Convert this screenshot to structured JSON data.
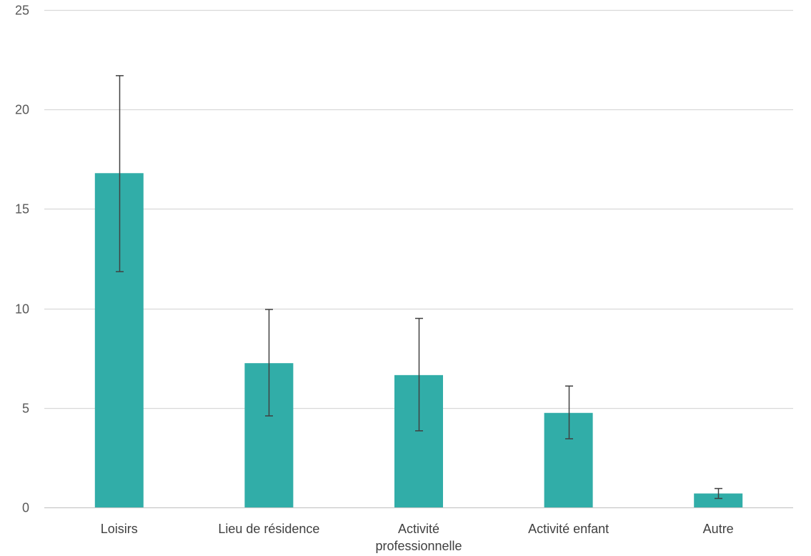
{
  "chart_data": {
    "type": "bar",
    "title": "",
    "xlabel": "",
    "ylabel": "",
    "ylim": [
      0,
      25
    ],
    "yticks": [
      0,
      5,
      10,
      15,
      20,
      25
    ],
    "grid": true,
    "legend": "none",
    "bar_color": "#31ADA8",
    "error_bar_color": "#404040",
    "categories": [
      [
        "Loisirs"
      ],
      [
        "Lieu de résidence"
      ],
      [
        "Activité",
        "professionnelle"
      ],
      [
        "Activité enfant"
      ],
      [
        "Autre"
      ]
    ],
    "values": [
      16.8,
      7.25,
      6.65,
      4.75,
      0.7
    ],
    "error_low": [
      11.85,
      4.6,
      3.85,
      3.45,
      0.45
    ],
    "error_high": [
      21.7,
      9.95,
      9.5,
      6.1,
      0.95
    ]
  }
}
